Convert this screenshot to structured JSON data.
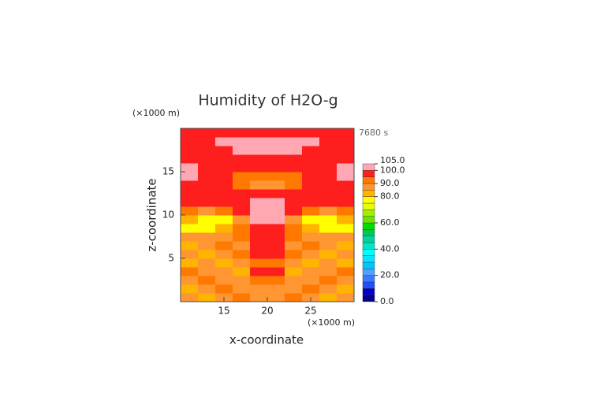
{
  "chart_data": {
    "type": "contour",
    "title": "Humidity of H2O-g",
    "x_label": "x-coordinate",
    "y_label": "z-coordinate",
    "x_unit": "(×1000 m)",
    "y_unit": "(×1000 m)",
    "time_label": "7680 s",
    "xlim": [
      10,
      30
    ],
    "ylim": [
      0,
      20
    ],
    "xticks": [
      15,
      20,
      25
    ],
    "yticks": [
      5,
      10,
      15
    ],
    "x": [
      11,
      13,
      15,
      17,
      19,
      21,
      23,
      25,
      27,
      29
    ],
    "y": [
      0.5,
      1.5,
      2.5,
      3.5,
      4.5,
      5.5,
      6.5,
      7.5,
      8.5,
      9.5,
      10.5,
      11.5,
      12.5,
      13.5,
      14.5,
      15.5,
      16.5,
      17.5,
      18.5,
      19.5
    ],
    "z": [
      [
        87,
        82,
        87,
        92,
        87,
        87,
        92,
        87,
        82,
        87
      ],
      [
        82,
        87,
        92,
        87,
        87,
        87,
        87,
        92,
        87,
        82
      ],
      [
        87,
        92,
        87,
        87,
        92,
        92,
        87,
        87,
        92,
        87
      ],
      [
        92,
        87,
        87,
        82,
        97,
        97,
        82,
        87,
        87,
        92
      ],
      [
        82,
        87,
        82,
        87,
        92,
        92,
        87,
        82,
        87,
        82
      ],
      [
        87,
        82,
        87,
        92,
        97,
        97,
        92,
        87,
        82,
        87
      ],
      [
        82,
        87,
        92,
        87,
        97,
        97,
        87,
        92,
        87,
        82
      ],
      [
        87,
        87,
        87,
        92,
        97,
        97,
        92,
        87,
        87,
        87
      ],
      [
        77,
        77,
        82,
        92,
        97,
        97,
        92,
        82,
        77,
        77
      ],
      [
        82,
        77,
        77,
        87,
        102,
        102,
        87,
        77,
        77,
        82
      ],
      [
        92,
        87,
        92,
        97,
        102,
        102,
        97,
        92,
        87,
        92
      ],
      [
        97,
        97,
        97,
        97,
        102,
        102,
        97,
        97,
        97,
        97
      ],
      [
        97,
        97,
        97,
        97,
        97,
        97,
        97,
        97,
        97,
        97
      ],
      [
        97,
        97,
        97,
        92,
        87,
        87,
        92,
        97,
        97,
        97
      ],
      [
        102,
        97,
        97,
        92,
        92,
        92,
        92,
        97,
        97,
        102
      ],
      [
        102,
        97,
        97,
        97,
        97,
        97,
        97,
        97,
        97,
        102
      ],
      [
        97,
        97,
        97,
        97,
        97,
        97,
        97,
        97,
        97,
        97
      ],
      [
        97,
        97,
        97,
        102,
        102,
        102,
        102,
        97,
        97,
        97
      ],
      [
        97,
        97,
        102,
        102,
        102,
        102,
        102,
        102,
        97,
        97
      ],
      [
        97,
        97,
        97,
        97,
        97,
        97,
        97,
        97,
        97,
        97
      ]
    ],
    "colorbar": {
      "levels": [
        0,
        5,
        10,
        15,
        20,
        25,
        30,
        35,
        40,
        45,
        50,
        55,
        60,
        65,
        70,
        75,
        80,
        85,
        90,
        95,
        100,
        105
      ],
      "colors": [
        "#00008b",
        "#0000cd",
        "#1e50ff",
        "#3c78ff",
        "#50a0ff",
        "#00c8ff",
        "#00e6ff",
        "#00ffff",
        "#00e6c8",
        "#00d2a0",
        "#00c850",
        "#00dc00",
        "#64e600",
        "#a0f000",
        "#e6ff00",
        "#ffff00",
        "#ffb400",
        "#ff9632",
        "#ff7800",
        "#ff1e1e",
        "#ffa8b4"
      ],
      "ticks": [
        {
          "value": 0,
          "label": "0.0"
        },
        {
          "value": 20,
          "label": "20.0"
        },
        {
          "value": 40,
          "label": "40.0"
        },
        {
          "value": 60,
          "label": "60.0"
        },
        {
          "value": 80,
          "label": "80.0"
        },
        {
          "value": 90,
          "label": "90.0"
        },
        {
          "value": 100,
          "label": "100.0"
        },
        {
          "value": 105,
          "label": "105.0"
        }
      ]
    }
  }
}
